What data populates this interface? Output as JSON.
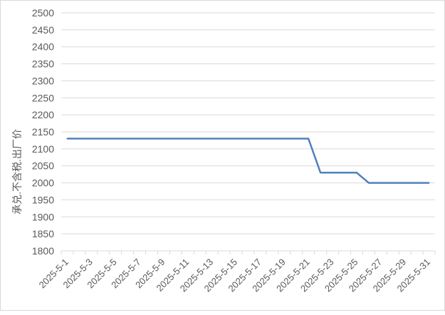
{
  "chart_data": {
    "type": "line",
    "title": "",
    "xlabel": "",
    "ylabel": "承兑.不含税.出厂价",
    "ylim": [
      1800,
      2500
    ],
    "ytick_step": 50,
    "grid": "horizontal",
    "line_color": "#4f81bd",
    "x": [
      "2025-5-1",
      "2025-5-2",
      "2025-5-3",
      "2025-5-4",
      "2025-5-5",
      "2025-5-6",
      "2025-5-7",
      "2025-5-8",
      "2025-5-9",
      "2025-5-10",
      "2025-5-11",
      "2025-5-12",
      "2025-5-13",
      "2025-5-14",
      "2025-5-15",
      "2025-5-16",
      "2025-5-17",
      "2025-5-18",
      "2025-5-19",
      "2025-5-20",
      "2025-5-21",
      "2025-5-22",
      "2025-5-23",
      "2025-5-24",
      "2025-5-25",
      "2025-5-26",
      "2025-5-27",
      "2025-5-28",
      "2025-5-29",
      "2025-5-30",
      "2025-5-31"
    ],
    "xtick_labels": [
      "2025-5-1",
      "2025-5-3",
      "2025-5-5",
      "2025-5-7",
      "2025-5-9",
      "2025-5-11",
      "2025-5-13",
      "2025-5-15",
      "2025-5-17",
      "2025-5-19",
      "2025-5-21",
      "2025-5-23",
      "2025-5-25",
      "2025-5-27",
      "2025-5-29",
      "2025-5-31"
    ],
    "values": [
      2130,
      2130,
      2130,
      2130,
      2130,
      2130,
      2130,
      2130,
      2130,
      2130,
      2130,
      2130,
      2130,
      2130,
      2130,
      2130,
      2130,
      2130,
      2130,
      2130,
      2130,
      2030,
      2030,
      2030,
      2030,
      2000,
      2000,
      2000,
      2000,
      2000,
      2000
    ]
  }
}
